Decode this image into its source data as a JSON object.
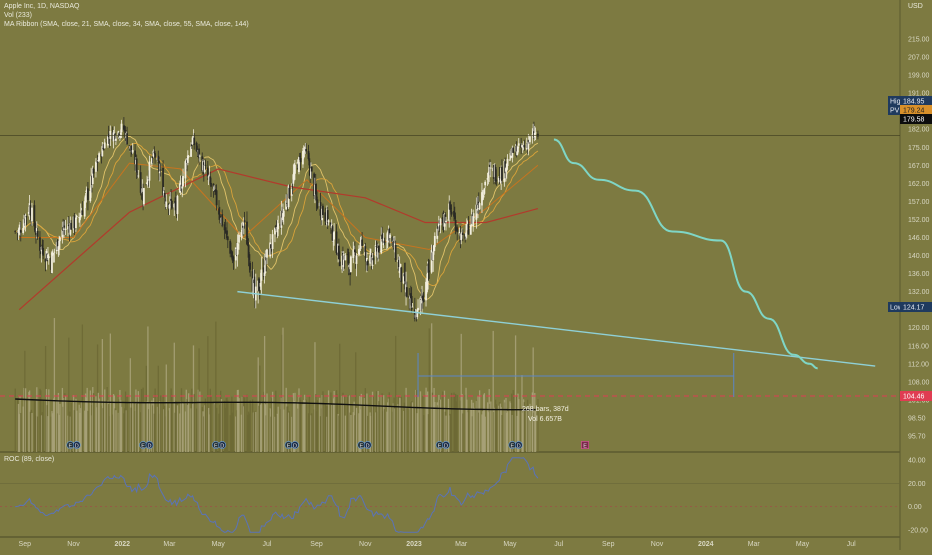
{
  "header": {
    "symbol_line": "Apple Inc, 1D, NASDAQ",
    "vol_line": "Vol (233)",
    "ribbon_line": "MA Ribbon (SMA, close, 21, SMA, close, 34, SMA, close, 55, SMA, close, 144)",
    "roc_line": "ROC (89, close)",
    "currency": "USD"
  },
  "colors": {
    "background": "#7d7a41",
    "bull": "#f2eedd",
    "bear": "#2a2a24",
    "ma21": "#e0c36a",
    "ma34": "#d9a33a",
    "ma55": "#c8741f",
    "ma144": "#b23a2c",
    "projection": "#7fd6c6",
    "trendline": "#8fd0d6",
    "roc": "#5a73b8",
    "hline_red": "#e03c52"
  },
  "chart_data": {
    "type": "candlestick",
    "price_axis_ticks": [
      215.0,
      207.0,
      199.0,
      191.0,
      187.0,
      182.0,
      175.0,
      167.0,
      162.0,
      157.0,
      152.0,
      146.0,
      140.0,
      136.0,
      132.0,
      128.0,
      120.0,
      116.0,
      112.0,
      108.0,
      101.5,
      98.5,
      95.7
    ],
    "roc_axis_ticks": [
      40.0,
      20.0,
      0.0,
      -20.0
    ],
    "time_axis_ticks": [
      "Sep",
      "Nov",
      "2022",
      "Mar",
      "May",
      "Jul",
      "Sep",
      "Nov",
      "2023",
      "Mar",
      "May",
      "Jul",
      "Sep",
      "Nov",
      "2024",
      "Mar",
      "May",
      "Jul"
    ],
    "price_labels": {
      "high_label": "High",
      "high_value": "184.95",
      "pv_label": "PV",
      "pv_value": "179.24",
      "last_value": "179.58",
      "low_label": "Low",
      "low_value": "124.17",
      "volume_line_value": "104.46"
    },
    "range_measure": {
      "bars_text": "268 bars, 387d",
      "vol_text": "Vol 6.657B"
    },
    "earnings_markers": [
      {
        "label": "E",
        "date": "2021-10-28"
      },
      {
        "label": "D",
        "date": "2021-11-05"
      },
      {
        "label": "E",
        "date": "2022-01-27"
      },
      {
        "label": "D",
        "date": "2022-02-04"
      },
      {
        "label": "E",
        "date": "2022-04-28"
      },
      {
        "label": "D",
        "date": "2022-05-06"
      },
      {
        "label": "E",
        "date": "2022-07-28"
      },
      {
        "label": "D",
        "date": "2022-08-05"
      },
      {
        "label": "E",
        "date": "2022-10-27"
      },
      {
        "label": "D",
        "date": "2022-11-04"
      },
      {
        "label": "E",
        "date": "2023-02-02"
      },
      {
        "label": "D",
        "date": "2023-02-10"
      },
      {
        "label": "E",
        "date": "2023-05-04"
      },
      {
        "label": "D",
        "date": "2023-05-12"
      },
      {
        "label": "E",
        "date": "2023-08-03"
      }
    ],
    "price_path": [
      [
        "2021-08-25",
        148
      ],
      [
        "2021-09-07",
        156
      ],
      [
        "2021-09-20",
        143
      ],
      [
        "2021-10-04",
        139
      ],
      [
        "2021-10-20",
        149
      ],
      [
        "2021-11-05",
        151
      ],
      [
        "2021-11-22",
        161
      ],
      [
        "2021-12-13",
        179
      ],
      [
        "2022-01-03",
        182
      ],
      [
        "2022-01-27",
        159
      ],
      [
        "2022-02-10",
        172
      ],
      [
        "2022-02-24",
        158
      ],
      [
        "2022-03-10",
        155
      ],
      [
        "2022-03-30",
        178
      ],
      [
        "2022-04-12",
        167
      ],
      [
        "2022-04-29",
        157
      ],
      [
        "2022-05-12",
        146
      ],
      [
        "2022-05-20",
        138
      ],
      [
        "2022-06-02",
        151
      ],
      [
        "2022-06-16",
        130
      ],
      [
        "2022-07-01",
        140
      ],
      [
        "2022-07-20",
        153
      ],
      [
        "2022-08-05",
        165
      ],
      [
        "2022-08-17",
        174
      ],
      [
        "2022-09-01",
        157
      ],
      [
        "2022-09-15",
        152
      ],
      [
        "2022-09-30",
        140
      ],
      [
        "2022-10-14",
        138
      ],
      [
        "2022-10-27",
        144
      ],
      [
        "2022-11-07",
        138
      ],
      [
        "2022-11-30",
        148
      ],
      [
        "2022-12-15",
        136
      ],
      [
        "2023-01-03",
        125
      ],
      [
        "2023-01-20",
        137
      ],
      [
        "2023-02-02",
        150
      ],
      [
        "2023-02-16",
        155
      ],
      [
        "2023-03-02",
        145
      ],
      [
        "2023-03-15",
        152
      ],
      [
        "2023-04-04",
        165
      ],
      [
        "2023-04-21",
        165
      ],
      [
        "2023-05-05",
        173
      ],
      [
        "2023-05-18",
        175
      ],
      [
        "2023-06-01",
        180
      ],
      [
        "2023-06-05",
        179.58
      ]
    ],
    "ma144_path": [
      [
        "2021-08-25",
        128
      ],
      [
        "2022-01-10",
        154
      ],
      [
        "2022-05-01",
        166
      ],
      [
        "2022-08-01",
        161
      ],
      [
        "2022-11-01",
        158
      ],
      [
        "2023-01-15",
        151
      ],
      [
        "2023-04-01",
        151
      ],
      [
        "2023-06-05",
        155
      ]
    ],
    "ma55_path": [
      [
        "2021-08-25",
        146
      ],
      [
        "2021-11-01",
        146
      ],
      [
        "2022-01-10",
        168
      ],
      [
        "2022-03-15",
        166
      ],
      [
        "2022-06-01",
        146
      ],
      [
        "2022-08-20",
        163
      ],
      [
        "2022-11-01",
        146
      ],
      [
        "2023-01-20",
        142
      ],
      [
        "2023-04-01",
        155
      ],
      [
        "2023-06-05",
        167
      ]
    ],
    "projection_path": [
      [
        "2023-06-25",
        178
      ],
      [
        "2023-07-20",
        168
      ],
      [
        "2023-08-20",
        163
      ],
      [
        "2023-10-05",
        160
      ],
      [
        "2023-11-20",
        148
      ],
      [
        "2024-01-20",
        145
      ],
      [
        "2024-02-20",
        132
      ],
      [
        "2024-03-20",
        124
      ],
      [
        "2024-04-20",
        114
      ],
      [
        "2024-05-10",
        112
      ],
      [
        "2024-05-20",
        111
      ]
    ],
    "trendline": {
      "from": [
        "2022-05-25",
        132
      ],
      "to": [
        "2024-07-31",
        111.5
      ]
    },
    "range_box": {
      "from": "2023-01-06",
      "to": "2024-02-05"
    },
    "roc_range": [
      -20,
      40
    ]
  }
}
